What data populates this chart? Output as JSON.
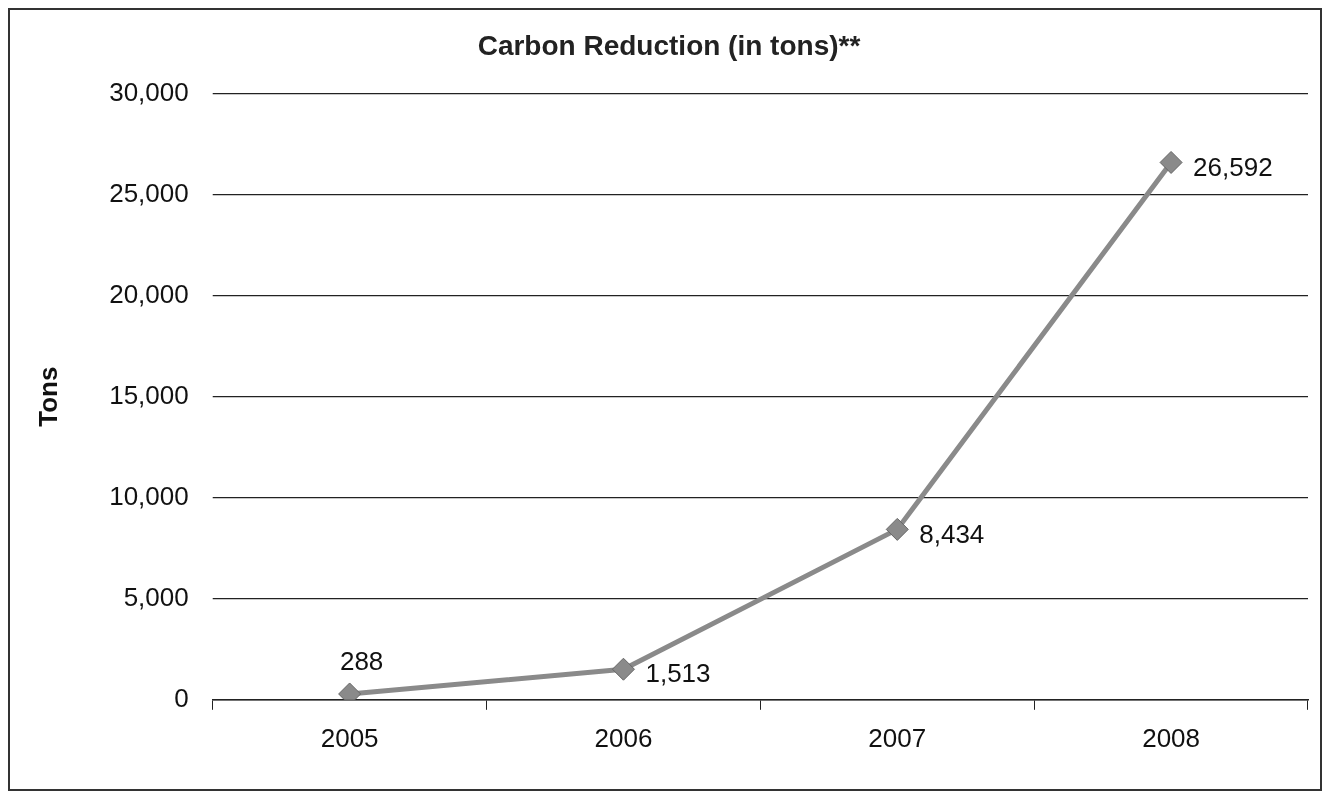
{
  "chart_data": {
    "type": "line",
    "title": "Carbon Reduction (in tons)**",
    "ylabel": "Tons",
    "categories": [
      "2005",
      "2006",
      "2007",
      "2008"
    ],
    "series": [
      {
        "color": "#8a8a8a",
        "values": [
          288,
          1513,
          8434,
          26592
        ],
        "value_labels": [
          "288",
          "1,513",
          "8,434",
          "26,592"
        ]
      }
    ],
    "ylim": [
      0,
      30000
    ],
    "yticks": [
      0,
      {
        "value": 5000,
        "label": "5,000"
      },
      {
        "value": 10000,
        "label": "10,000"
      },
      {
        "value": 15000,
        "label": "15,000"
      },
      {
        "value": 20000,
        "label": "20,000"
      },
      {
        "value": 25000,
        "label": "25,000"
      },
      {
        "value": 30000,
        "label": "30,000"
      }
    ],
    "grid": "y",
    "legend": false,
    "marker": "diamond",
    "line_style": "solid"
  }
}
